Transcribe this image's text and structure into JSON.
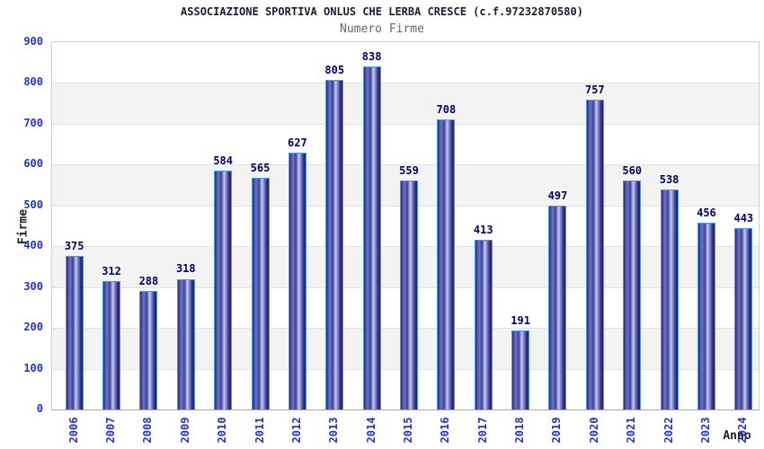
{
  "header": {
    "title": "ASSOCIAZIONE SPORTIVA ONLUS CHE LERBA CRESCE (c.f.97232870580)",
    "subtitle": "Numero Firme"
  },
  "chart_data": {
    "type": "bar",
    "title": "Numero Firme",
    "categories": [
      "2006",
      "2007",
      "2008",
      "2009",
      "2010",
      "2011",
      "2012",
      "2013",
      "2014",
      "2015",
      "2016",
      "2017",
      "2018",
      "2019",
      "2020",
      "2021",
      "2022",
      "2023",
      "2024"
    ],
    "values": [
      375,
      312,
      288,
      318,
      584,
      565,
      627,
      805,
      838,
      559,
      708,
      413,
      191,
      497,
      757,
      560,
      538,
      456,
      443
    ],
    "xlabel": "Anno",
    "ylabel": "Firme",
    "ylim": [
      0,
      900
    ],
    "yticks": [
      0,
      100,
      200,
      300,
      400,
      500,
      600,
      700,
      800,
      900
    ],
    "gray_band_top_values": [
      800,
      600,
      400,
      200
    ],
    "grid": true,
    "legend": "none",
    "colors": {
      "bar_border": "#4f97e0",
      "bar_dark": "#2b2b80",
      "bar_highlight": "#c6cdf4",
      "tick_label": "#2233cc",
      "value_label": "#000066",
      "band": "#f3f3f3",
      "gridline": "#e2e2e2",
      "title": "#1c1c30",
      "subtitle": "#666666"
    }
  }
}
